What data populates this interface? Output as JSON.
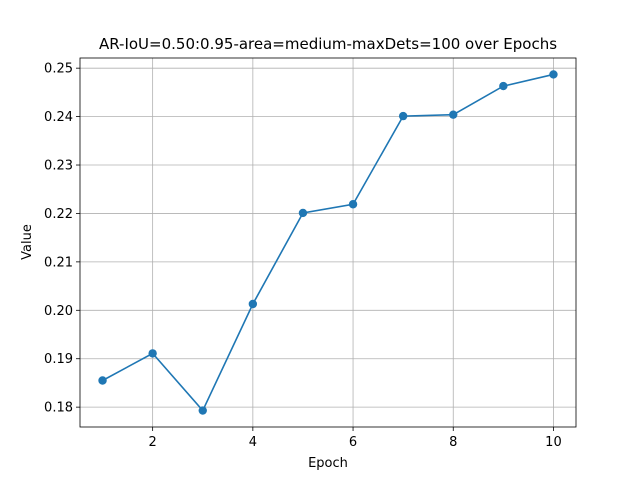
{
  "chart_data": {
    "type": "line",
    "title": "AR-IoU=0.50:0.95-area=medium-maxDets=100 over Epochs",
    "xlabel": "Epoch",
    "ylabel": "Value",
    "x": [
      1,
      2,
      3,
      4,
      5,
      6,
      7,
      8,
      9,
      10
    ],
    "series": [
      {
        "values": [
          0.1855,
          0.1911,
          0.1793,
          0.2013,
          0.2201,
          0.2219,
          0.2401,
          0.2404,
          0.2463,
          0.2487
        ],
        "color": "#1f77b4",
        "marker": "circle"
      }
    ],
    "xlim": [
      0.55,
      10.45
    ],
    "ylim": [
      0.1759,
      0.2521
    ],
    "xticks": [
      2,
      4,
      6,
      8,
      10
    ],
    "xtick_labels": [
      "2",
      "4",
      "6",
      "8",
      "10"
    ],
    "yticks": [
      0.18,
      0.19,
      0.2,
      0.21,
      0.22,
      0.23,
      0.24,
      0.25
    ],
    "ytick_labels": [
      "0.18",
      "0.19",
      "0.20",
      "0.21",
      "0.22",
      "0.23",
      "0.24",
      "0.25"
    ],
    "grid": true,
    "legend": "none"
  }
}
